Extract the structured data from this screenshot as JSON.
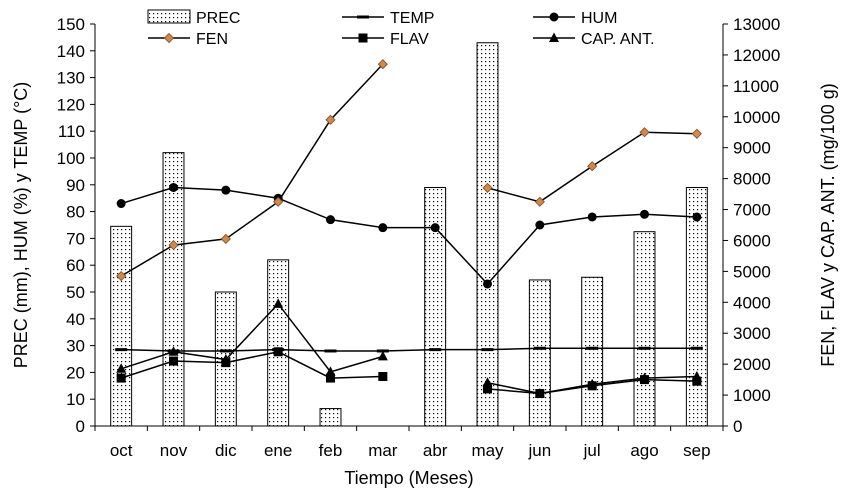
{
  "chart_data": {
    "type": "bar+line",
    "categories": [
      "oct",
      "nov",
      "dic",
      "ene",
      "feb",
      "mar",
      "abr",
      "may",
      "jun",
      "jul",
      "ago",
      "sep"
    ],
    "xlabel": "Tiempo (Meses)",
    "ylabel_left": "PREC (mm), HUM (%) y TEMP (°C)",
    "ylabel_right": "FEN, FLAV y CAP. ANT. (mg/100 g)",
    "ylim_left": [
      0,
      150
    ],
    "ylim_right": [
      0,
      13000
    ],
    "left_ticks": [
      0,
      10,
      20,
      30,
      40,
      50,
      60,
      70,
      80,
      90,
      100,
      110,
      120,
      130,
      140,
      150
    ],
    "right_ticks": [
      0,
      1000,
      2000,
      3000,
      4000,
      5000,
      6000,
      7000,
      8000,
      9000,
      10000,
      11000,
      12000,
      13000
    ],
    "grid": false,
    "series": [
      {
        "name": "PREC",
        "kind": "bar",
        "axis": "left",
        "values": [
          74.5,
          102,
          50,
          62,
          6.5,
          null,
          89,
          143,
          54.5,
          55.5,
          72.5,
          89
        ]
      },
      {
        "name": "TEMP",
        "kind": "line",
        "marker": "dash",
        "axis": "left",
        "values": [
          28.5,
          28,
          28,
          28.5,
          28,
          28,
          28.5,
          28.5,
          29,
          29,
          29,
          29
        ]
      },
      {
        "name": "HUM",
        "kind": "line",
        "marker": "circle",
        "axis": "left",
        "values": [
          83,
          89,
          88,
          85,
          77,
          74,
          74,
          53,
          75,
          78,
          79,
          78
        ]
      },
      {
        "name": "FEN",
        "kind": "line",
        "marker": "diamond",
        "axis": "right",
        "values": [
          4850,
          5850,
          6050,
          7250,
          9900,
          11700,
          null,
          7700,
          7250,
          8400,
          9500,
          9450
        ]
      },
      {
        "name": "FLAV",
        "kind": "line",
        "marker": "square",
        "axis": "right",
        "values": [
          1550,
          2100,
          2050,
          2400,
          1550,
          1600,
          null,
          1200,
          1050,
          1300,
          1500,
          1450
        ]
      },
      {
        "name": "CAP. ANT.",
        "kind": "line",
        "marker": "triangle",
        "axis": "right",
        "values": [
          1850,
          2400,
          2150,
          3950,
          1750,
          2250,
          null,
          1400,
          1050,
          1350,
          1550,
          1600
        ]
      }
    ],
    "legend_row1": [
      "PREC",
      "TEMP",
      "HUM"
    ],
    "legend_row2": [
      "FEN",
      "FLAV",
      "CAP. ANT."
    ],
    "colors": {
      "axis": "#000000",
      "line": "#000000",
      "fen_marker": "#d4874a"
    }
  }
}
